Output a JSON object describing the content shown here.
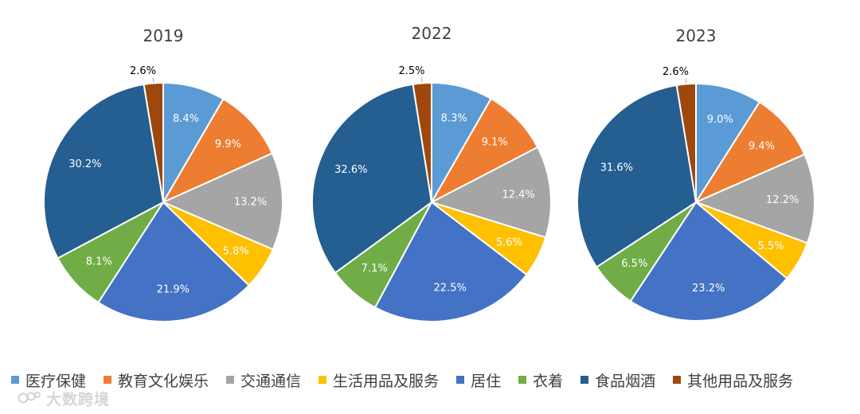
{
  "chart_data": [
    {
      "type": "pie",
      "title": "2019",
      "categories": [
        "医疗保健",
        "教育文化娱乐",
        "交通通信",
        "生活用品及服务",
        "居住",
        "衣着",
        "食品烟酒",
        "其他用品及服务"
      ],
      "values": [
        8.4,
        9.9,
        13.2,
        5.8,
        21.9,
        8.1,
        30.2,
        2.6
      ],
      "labels": [
        "8.4%",
        "9.9%",
        "13.2%",
        "5.8%",
        "21.9%",
        "8.1%",
        "30.2%",
        "2.6%"
      ]
    },
    {
      "type": "pie",
      "title": "2022",
      "categories": [
        "医疗保健",
        "教育文化娱乐",
        "交通通信",
        "生活用品及服务",
        "居住",
        "衣着",
        "食品烟酒",
        "其他用品及服务"
      ],
      "values": [
        8.3,
        9.1,
        12.4,
        5.6,
        22.5,
        7.1,
        32.6,
        2.5
      ],
      "labels": [
        "8.3%",
        "9.1%",
        "12.4%",
        "5.6%",
        "22.5%",
        "7.1%",
        "32.6%",
        "2.5%"
      ]
    },
    {
      "type": "pie",
      "title": "2023",
      "categories": [
        "医疗保健",
        "教育文化娱乐",
        "交通通信",
        "生活用品及服务",
        "居住",
        "衣着",
        "食品烟酒",
        "其他用品及服务"
      ],
      "values": [
        9.0,
        9.4,
        12.2,
        5.5,
        23.2,
        6.5,
        31.6,
        2.6
      ],
      "labels": [
        "9.0%",
        "9.4%",
        "12.2%",
        "5.5%",
        "23.2%",
        "6.5%",
        "31.6%",
        "2.6%"
      ]
    }
  ],
  "legend": {
    "position": "bottom",
    "items": [
      {
        "label": "医疗保健",
        "color": "#5B9BD5"
      },
      {
        "label": "教育文化娱乐",
        "color": "#ED7D31"
      },
      {
        "label": "交通通信",
        "color": "#A5A5A5"
      },
      {
        "label": "生活用品及服务",
        "color": "#FFC000"
      },
      {
        "label": "居住",
        "color": "#4472C4"
      },
      {
        "label": "衣着",
        "color": "#70AD47"
      },
      {
        "label": "食品烟酒",
        "color": "#255E91"
      },
      {
        "label": "其他用品及服务",
        "color": "#9E480E"
      }
    ]
  },
  "watermark": {
    "text": "大数跨境",
    "icon": "brand-logo-icon"
  }
}
